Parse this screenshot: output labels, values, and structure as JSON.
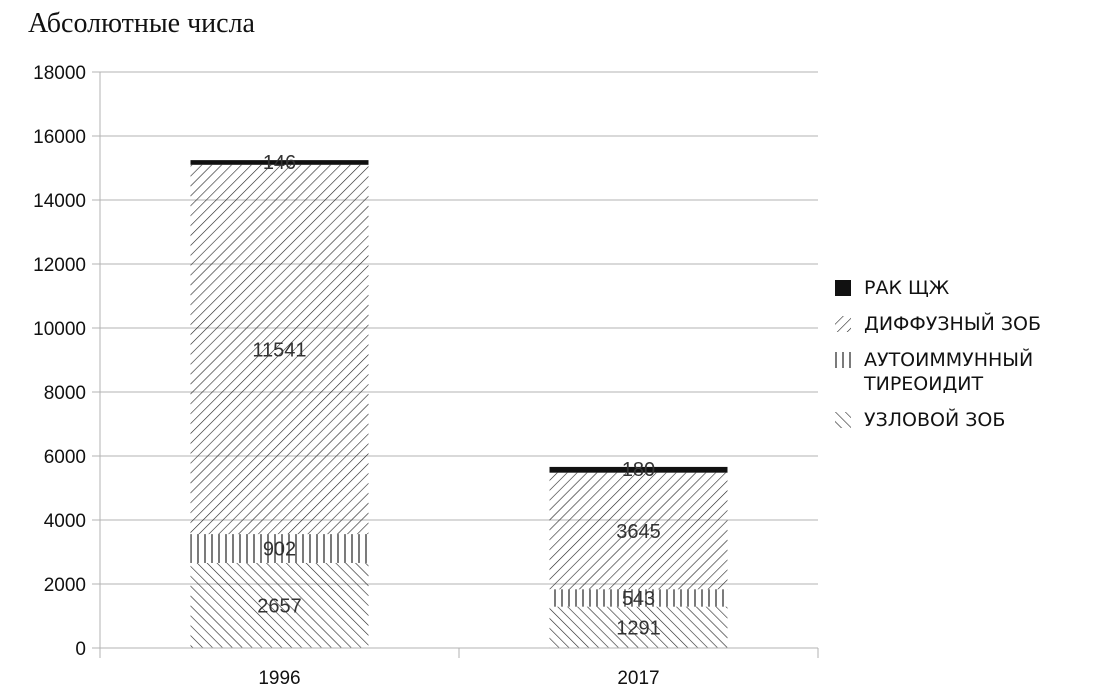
{
  "chart_data": {
    "type": "bar",
    "stacked": true,
    "title": "Абсолютные числа",
    "categories": [
      "1996",
      "2017"
    ],
    "series": [
      {
        "name": "УЗЛОВОЙ ЗОБ",
        "values": [
          2657,
          1291
        ],
        "pattern": "backslash-hatch"
      },
      {
        "name": "АУТОИММУННЫЙ ТИРЕОИДИТ",
        "values": [
          902,
          543
        ],
        "pattern": "vertical-lines"
      },
      {
        "name": "ДИФФУЗНЫЙ ЗОБ",
        "values": [
          11541,
          3645
        ],
        "pattern": "slash-hatch"
      },
      {
        "name": "РАК ЩЖ",
        "values": [
          146,
          180
        ],
        "pattern": "solid",
        "color": "#111111"
      }
    ],
    "ylim": [
      0,
      18000
    ],
    "yticks": [
      0,
      2000,
      4000,
      6000,
      8000,
      10000,
      12000,
      14000,
      16000,
      18000
    ],
    "grid": true,
    "legend_position": "right",
    "data_labels": [
      [
        "2657",
        "1291"
      ],
      [
        "902",
        "543"
      ],
      [
        "11541",
        "3645"
      ],
      [
        "146",
        "180"
      ]
    ]
  }
}
